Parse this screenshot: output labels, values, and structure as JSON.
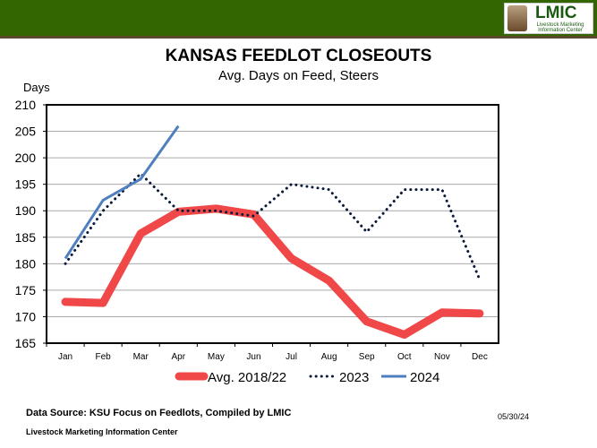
{
  "header": {
    "logo_text": "LMIC",
    "logo_subtext": "Livestock Marketing Information Center"
  },
  "chart_data": {
    "type": "line",
    "title": "KANSAS FEEDLOT CLOSEOUTS",
    "subtitle": "Avg. Days on Feed, Steers",
    "ylabel": "Days",
    "ylim": [
      165,
      210
    ],
    "yticks": [
      165,
      170,
      175,
      180,
      185,
      190,
      195,
      200,
      205,
      210
    ],
    "categories": [
      "Jan",
      "Feb",
      "Mar",
      "Apr",
      "May",
      "Jun",
      "Jul",
      "Aug",
      "Sep",
      "Oct",
      "Nov",
      "Dec"
    ],
    "grid": true,
    "legend": "bottom",
    "series": [
      {
        "name": "Avg. 2018/22",
        "color": "#f04848",
        "style": "thick-solid",
        "values": [
          172.8,
          172.6,
          185.7,
          189.8,
          190.4,
          189.3,
          181.0,
          176.8,
          169.1,
          166.6,
          170.8,
          170.6
        ]
      },
      {
        "name": "2023",
        "color": "#0a1a3a",
        "style": "dotted",
        "values": [
          180,
          190,
          197,
          190,
          190,
          189,
          195,
          194,
          186,
          194,
          194,
          177
        ]
      },
      {
        "name": "2024",
        "color": "#4f7fbf",
        "style": "solid",
        "values": [
          181,
          192,
          196,
          206,
          null,
          null,
          null,
          null,
          null,
          null,
          null,
          null
        ]
      }
    ]
  },
  "footer": {
    "source": "Data Source:  KSU Focus on Feedlots, Compiled by LMIC",
    "org": "Livestock Marketing Information Center",
    "date": "05/30/24"
  }
}
